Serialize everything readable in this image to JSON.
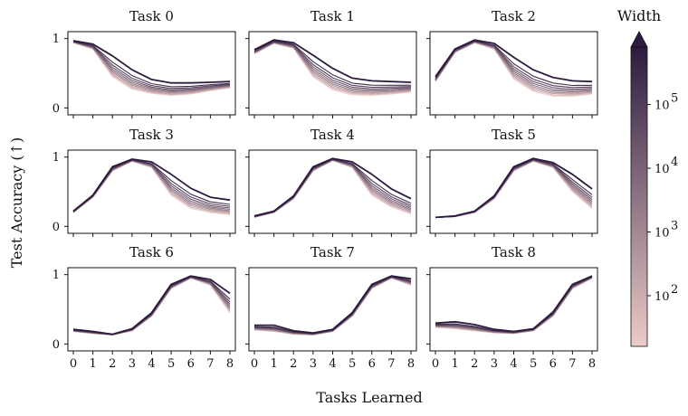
{
  "chart_data": {
    "type": "line",
    "xlabel": "Tasks Learned",
    "ylabel": "Test Accuracy (↑)",
    "x_ticks": [
      "0",
      "1",
      "2",
      "3",
      "4",
      "5",
      "6",
      "7",
      "8"
    ],
    "y_ticks": [
      "0",
      "1"
    ],
    "ylim": [
      -0.1,
      1.1
    ],
    "colorbar": {
      "title": "Width",
      "scale": "log",
      "tick_labels": [
        "10",
        "2",
        "10",
        "3",
        "10",
        "4",
        "10",
        "5"
      ],
      "tick_values": [
        100,
        1000,
        10000,
        100000
      ],
      "range": [
        16,
        800000
      ],
      "color_low": "#ecccc8",
      "color_high": "#2c1b3f"
    },
    "panels": [
      {
        "title": "Task 0",
        "top": [
          0.97,
          0.92,
          0.75,
          0.55,
          0.41,
          0.36,
          0.36,
          0.37,
          0.38
        ],
        "bottom": [
          0.94,
          0.85,
          0.45,
          0.27,
          0.21,
          0.18,
          0.2,
          0.25,
          0.29
        ]
      },
      {
        "title": "Task 1",
        "top": [
          0.84,
          0.98,
          0.94,
          0.76,
          0.57,
          0.43,
          0.39,
          0.38,
          0.37
        ],
        "bottom": [
          0.78,
          0.93,
          0.86,
          0.45,
          0.26,
          0.19,
          0.18,
          0.2,
          0.23
        ]
      },
      {
        "title": "Task 2",
        "top": [
          0.45,
          0.85,
          0.98,
          0.93,
          0.73,
          0.55,
          0.44,
          0.39,
          0.38
        ],
        "bottom": [
          0.38,
          0.8,
          0.94,
          0.85,
          0.42,
          0.24,
          0.17,
          0.17,
          0.2
        ]
      },
      {
        "title": "Task 3",
        "top": [
          0.22,
          0.45,
          0.86,
          0.97,
          0.93,
          0.75,
          0.55,
          0.42,
          0.38
        ],
        "bottom": [
          0.2,
          0.42,
          0.8,
          0.94,
          0.85,
          0.45,
          0.26,
          0.2,
          0.17
        ]
      },
      {
        "title": "Task 4",
        "top": [
          0.15,
          0.22,
          0.44,
          0.86,
          0.98,
          0.93,
          0.75,
          0.54,
          0.4
        ],
        "bottom": [
          0.13,
          0.2,
          0.4,
          0.8,
          0.95,
          0.85,
          0.45,
          0.28,
          0.18
        ]
      },
      {
        "title": "Task 5",
        "top": [
          0.13,
          0.15,
          0.22,
          0.44,
          0.86,
          0.98,
          0.92,
          0.75,
          0.54
        ],
        "bottom": [
          0.13,
          0.14,
          0.2,
          0.4,
          0.8,
          0.94,
          0.85,
          0.5,
          0.26
        ]
      },
      {
        "title": "Task 6",
        "top": [
          0.21,
          0.18,
          0.14,
          0.22,
          0.45,
          0.86,
          0.98,
          0.93,
          0.73
        ],
        "bottom": [
          0.18,
          0.15,
          0.13,
          0.19,
          0.4,
          0.8,
          0.95,
          0.85,
          0.45
        ]
      },
      {
        "title": "Task 7",
        "top": [
          0.27,
          0.27,
          0.19,
          0.16,
          0.21,
          0.45,
          0.86,
          0.98,
          0.94
        ],
        "bottom": [
          0.2,
          0.18,
          0.14,
          0.13,
          0.18,
          0.4,
          0.8,
          0.95,
          0.85
        ]
      },
      {
        "title": "Task 8",
        "top": [
          0.3,
          0.32,
          0.28,
          0.21,
          0.18,
          0.22,
          0.46,
          0.86,
          0.98
        ],
        "bottom": [
          0.24,
          0.22,
          0.19,
          0.16,
          0.15,
          0.19,
          0.4,
          0.8,
          0.95
        ]
      }
    ],
    "num_width_lines": 10
  }
}
